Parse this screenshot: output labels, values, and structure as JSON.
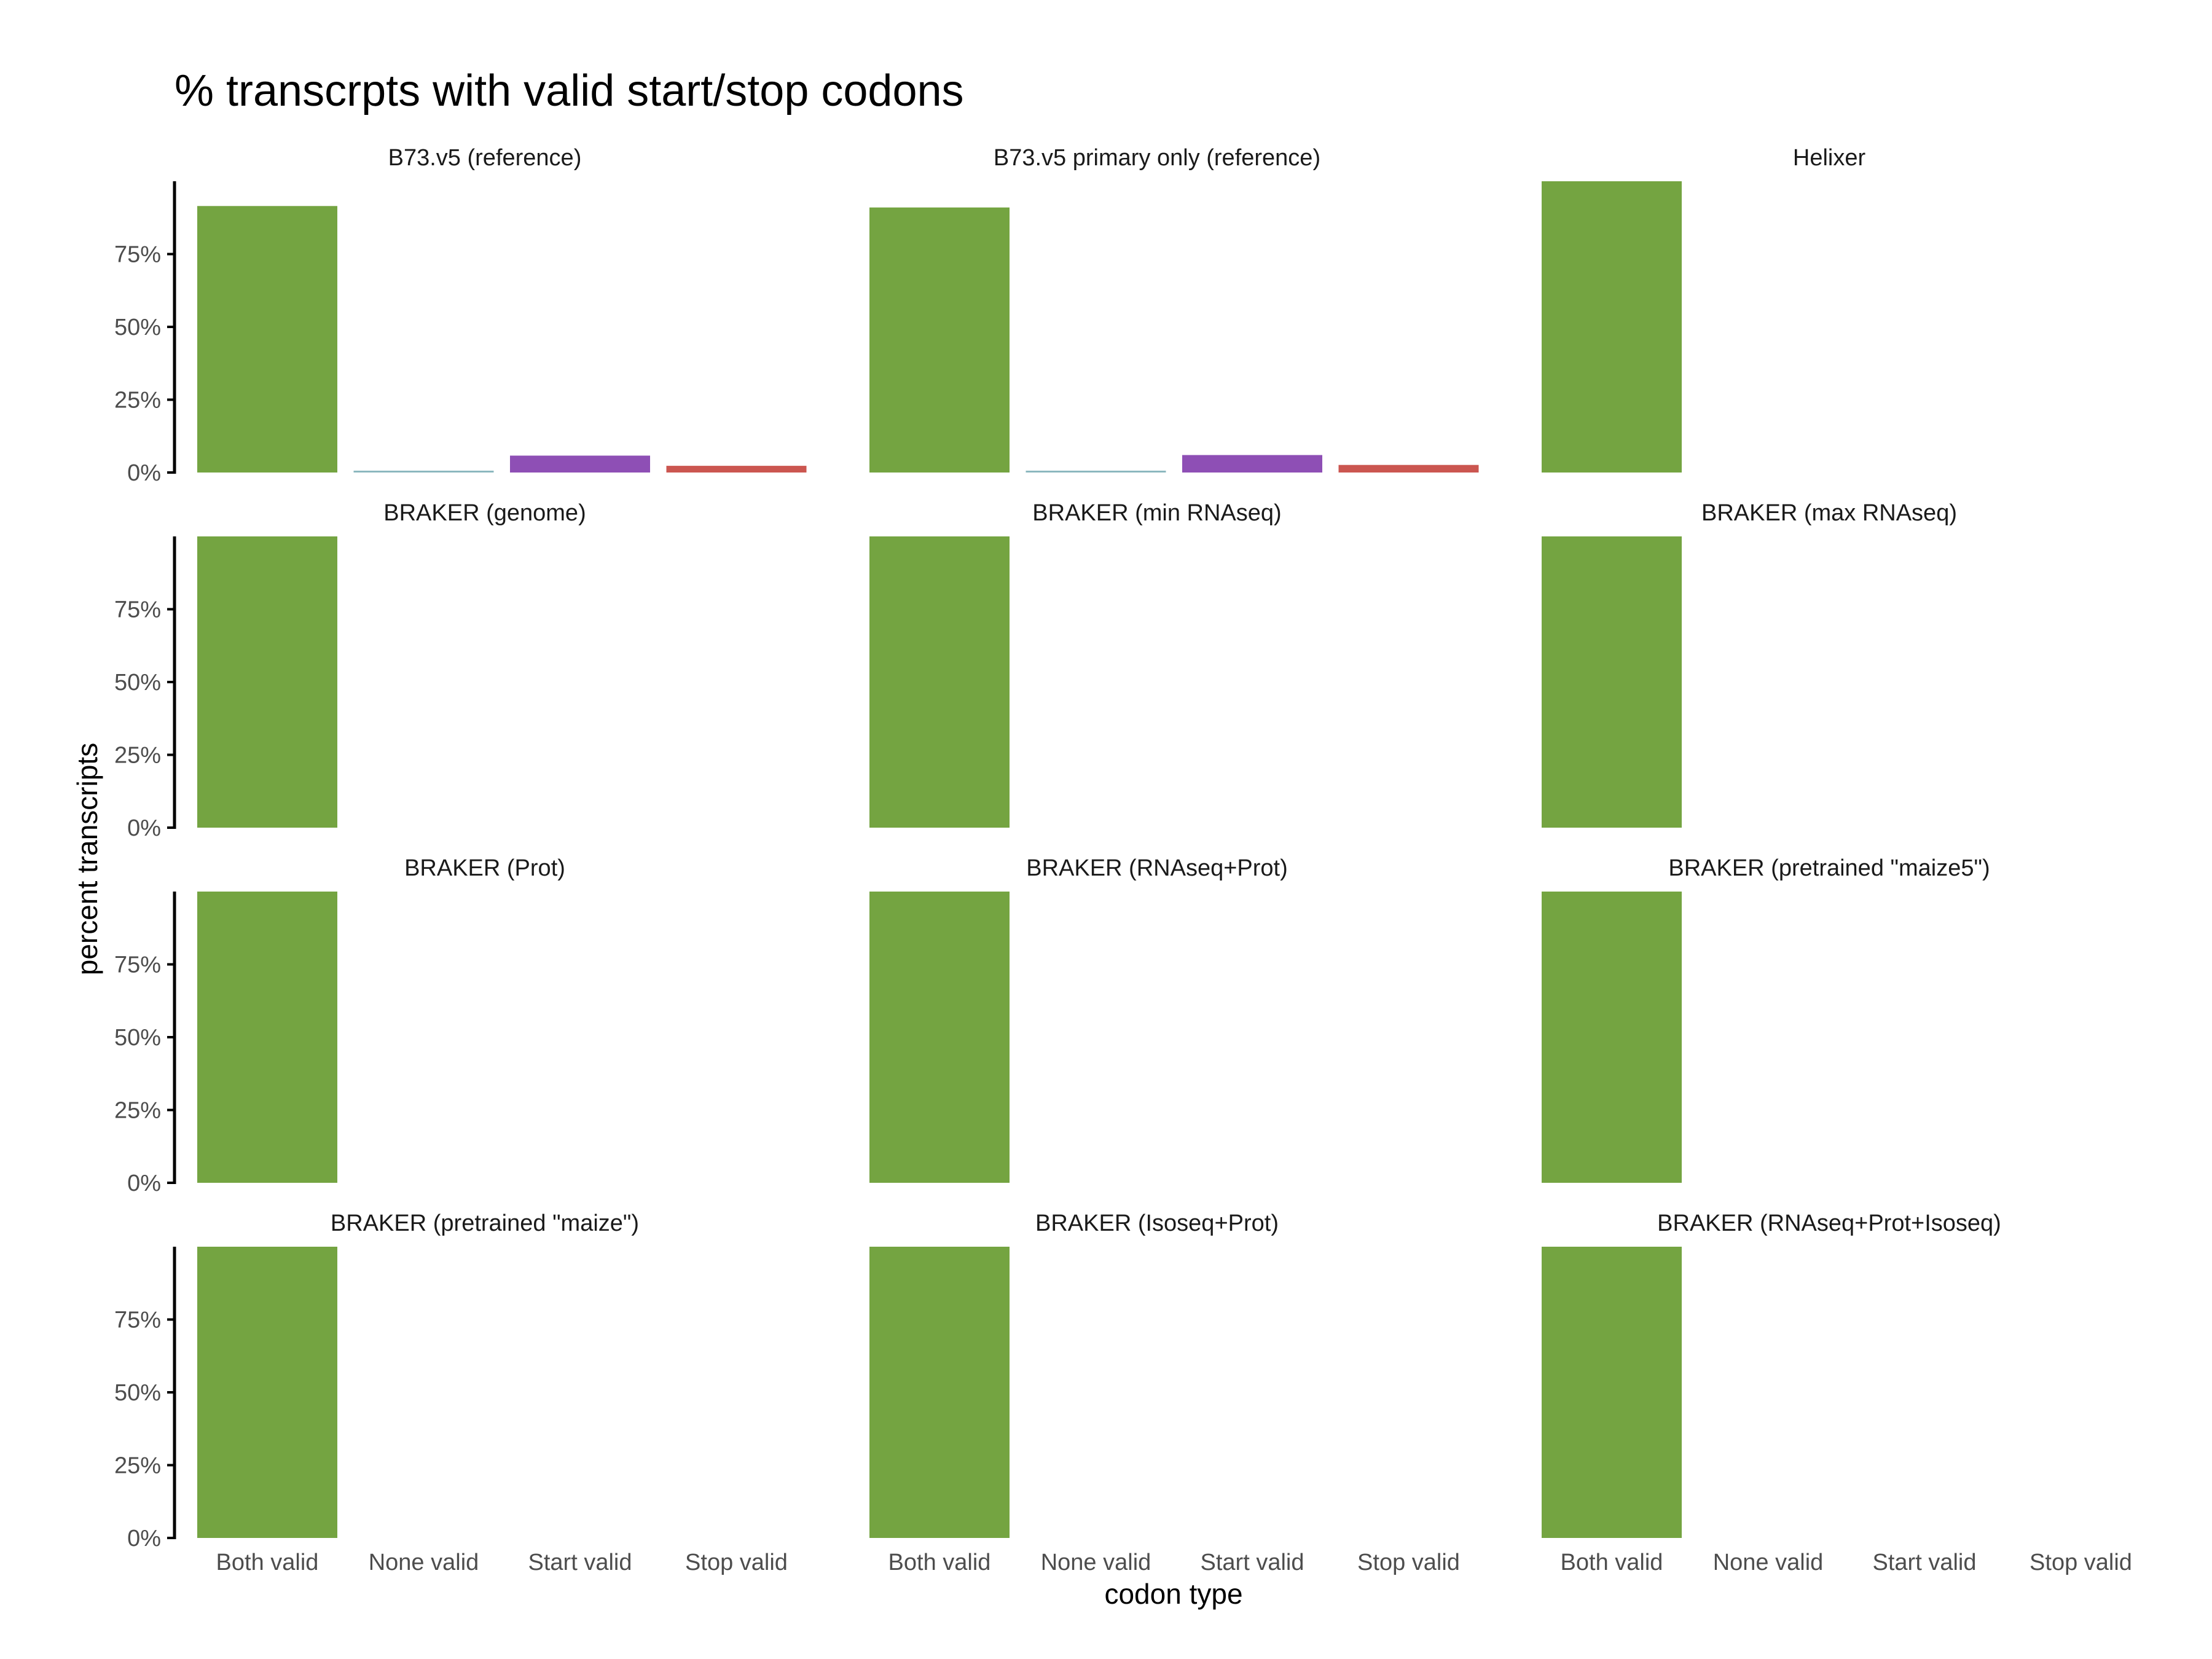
{
  "title": "% transcrpts with valid start/stop codons",
  "chart_data": {
    "type": "bar",
    "title": "% transcrpts with valid start/stop codons",
    "xlabel": "codon type",
    "ylabel": "percent transcripts",
    "categories": [
      "Both valid",
      "None valid",
      "Start valid",
      "Stop valid"
    ],
    "colors": [
      "#74a441",
      "#8cb8bf",
      "#8e4fb5",
      "#cb5650"
    ],
    "ylim": [
      0,
      100
    ],
    "yticks": [
      0,
      25,
      50,
      75
    ],
    "ytick_labels": [
      "0%",
      "25%",
      "50%",
      "75%"
    ],
    "grid": false,
    "legend": "none",
    "facets": [
      {
        "name": "B73.v5 (reference)",
        "values": [
          91.5,
          0.4,
          5.8,
          2.3
        ]
      },
      {
        "name": "B73.v5 primary only (reference)",
        "values": [
          91.0,
          0.4,
          6.0,
          2.6
        ]
      },
      {
        "name": "Helixer",
        "values": [
          100,
          0,
          0,
          0
        ]
      },
      {
        "name": "BRAKER (genome)",
        "values": [
          100,
          0,
          0,
          0
        ]
      },
      {
        "name": "BRAKER (min RNAseq)",
        "values": [
          100,
          0,
          0,
          0
        ]
      },
      {
        "name": "BRAKER (max RNAseq)",
        "values": [
          100,
          0,
          0,
          0
        ]
      },
      {
        "name": "BRAKER (Prot)",
        "values": [
          100,
          0,
          0,
          0
        ]
      },
      {
        "name": "BRAKER (RNAseq+Prot)",
        "values": [
          100,
          0,
          0,
          0
        ]
      },
      {
        "name": "BRAKER (pretrained \"maize5\")",
        "values": [
          100,
          0,
          0,
          0
        ]
      },
      {
        "name": "BRAKER (pretrained \"maize\")",
        "values": [
          100,
          0,
          0,
          0
        ]
      },
      {
        "name": "BRAKER (Isoseq+Prot)",
        "values": [
          100,
          0,
          0,
          0
        ]
      },
      {
        "name": "BRAKER (RNAseq+Prot+Isoseq)",
        "values": [
          100,
          0,
          0,
          0
        ]
      }
    ]
  }
}
